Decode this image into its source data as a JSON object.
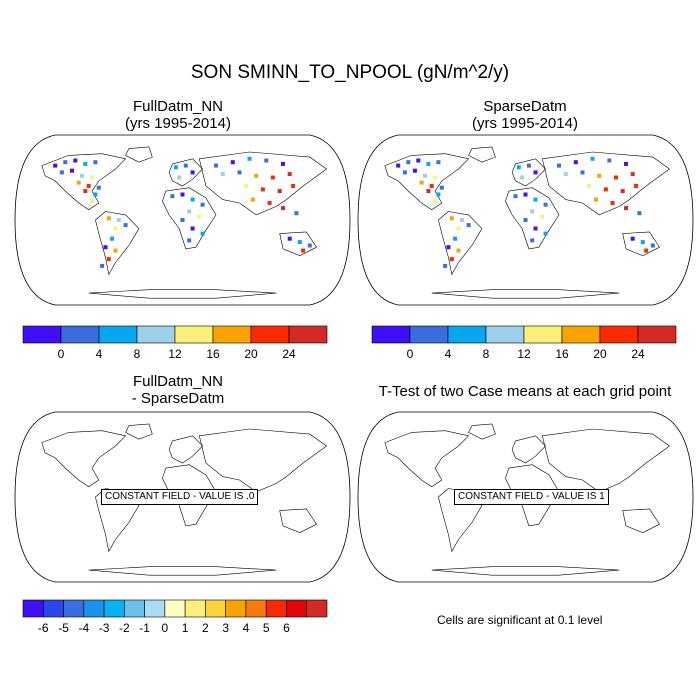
{
  "title": "SON SMINN_TO_NPOOL (gN/m^2/y)",
  "panels": [
    {
      "line1": "FullDatm_NN",
      "line2": "(yrs 1995-2014)"
    },
    {
      "line1": "SparseDatm",
      "line2": "(yrs 1995-2014)"
    },
    {
      "line1": "FullDatm_NN",
      "line2": "- SparseDatm",
      "constant_text": "CONSTANT FIELD - VALUE IS .0"
    },
    {
      "line1": "T-Test of two Case means at each grid point",
      "constant_text": "CONSTANT FIELD - VALUE IS 1"
    }
  ],
  "colorbar_top": {
    "colors": [
      "#3f10f5",
      "#3a6ee0",
      "#07a6ef",
      "#9ccfe9",
      "#fbf07a",
      "#f9a200",
      "#fa2a02",
      "#d42a24"
    ],
    "labels": [
      "0",
      "4",
      "8",
      "12",
      "16",
      "20",
      "24"
    ]
  },
  "colorbar_bottom": {
    "colors": [
      "#3f10f5",
      "#2848ea",
      "#3a6ee0",
      "#1993ec",
      "#07b2f2",
      "#6ec0ec",
      "#a9dcf4",
      "#fefec2",
      "#fbf07a",
      "#fcd33c",
      "#f9a200",
      "#f7780e",
      "#fa2a02",
      "#e10503",
      "#d42a24"
    ],
    "labels": [
      "-6",
      "-5",
      "-4",
      "-3",
      "-2",
      "-1",
      "0",
      "1",
      "2",
      "3",
      "4",
      "5",
      "6"
    ]
  },
  "significance_note": "Cells are significant at 0.1 level"
}
